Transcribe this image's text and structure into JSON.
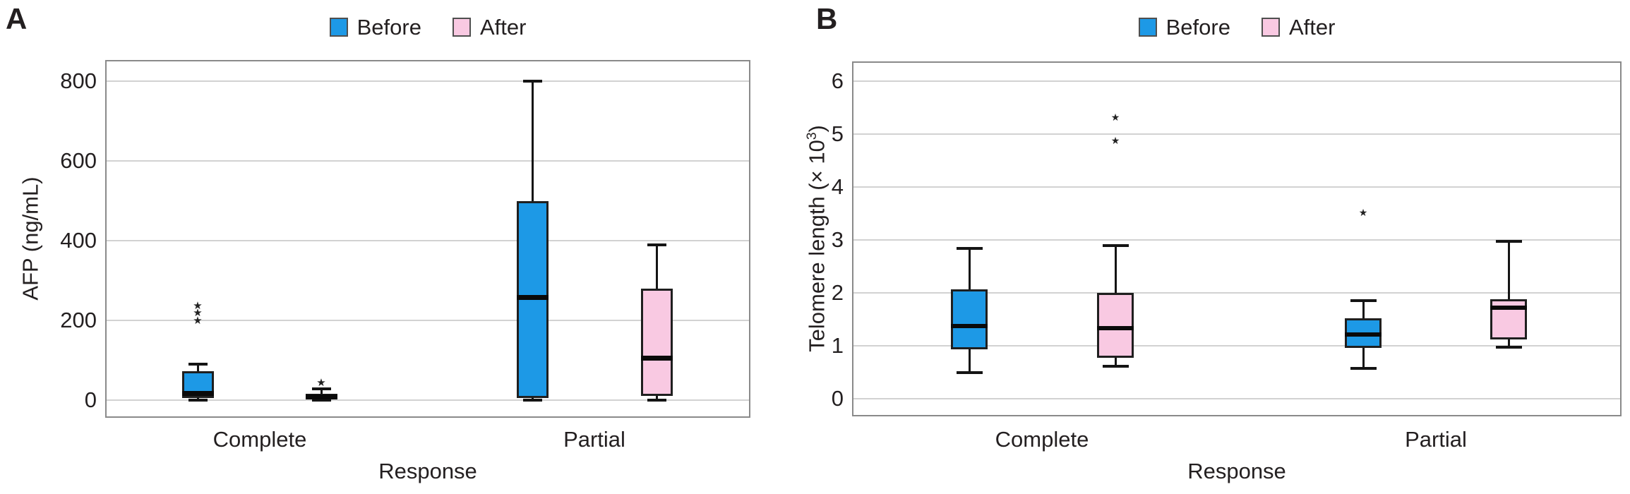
{
  "style": {
    "before_color": "#1d99e6",
    "after_color": "#f9c9e2",
    "box_border_color": "#1f1f1f",
    "median_color": "#0a0a0a",
    "grid_color": "#d2d2d2",
    "frame_color": "#8a8a8a",
    "text_color": "#231f20",
    "outlier_marker": "★"
  },
  "chart_data": [
    {
      "type": "boxplot",
      "title": "A",
      "xlabel": "Response",
      "ylabel": "AFP (ng/mL)",
      "ylabel_parts": {
        "prefix": "AFP (ng/mL)",
        "sup": "",
        "suffix": ""
      },
      "categories": [
        "Complete",
        "Partial"
      ],
      "yticks": [
        0,
        200,
        400,
        600,
        800
      ],
      "ylim": [
        -45,
        855
      ],
      "grid": true,
      "legend_position": "top-center",
      "series": [
        {
          "name": "Before",
          "color": "#1d99e6",
          "boxes": [
            {
              "category": "Complete",
              "whisker_low": 0,
              "q1": 5,
              "median": 16,
              "q3": 72,
              "whisker_high": 90,
              "outliers": [
                200,
                219,
                237
              ]
            },
            {
              "category": "Partial",
              "whisker_low": 0,
              "q1": 5,
              "median": 258,
              "q3": 500,
              "whisker_high": 800,
              "outliers": []
            }
          ]
        },
        {
          "name": "After",
          "color": "#f9c9e2",
          "boxes": [
            {
              "category": "Complete",
              "whisker_low": 0,
              "q1": 2,
              "median": 8,
              "q3": 16,
              "whisker_high": 28,
              "outliers": [
                43
              ]
            },
            {
              "category": "Partial",
              "whisker_low": 0,
              "q1": 10,
              "median": 105,
              "q3": 280,
              "whisker_high": 390,
              "outliers": []
            }
          ]
        }
      ]
    },
    {
      "type": "boxplot",
      "title": "B",
      "xlabel": "Response",
      "ylabel": "Telomere length (× 10³)",
      "ylabel_parts": {
        "prefix": "Telomere length (× 10",
        "sup": "3",
        "suffix": ")"
      },
      "categories": [
        "Complete",
        "Partial"
      ],
      "yticks": [
        0,
        1,
        2,
        3,
        4,
        5,
        6
      ],
      "ylim": [
        -0.33,
        6.37
      ],
      "grid": true,
      "legend_position": "top-center",
      "series": [
        {
          "name": "Before",
          "color": "#1d99e6",
          "boxes": [
            {
              "category": "Complete",
              "whisker_low": 0.5,
              "q1": 0.93,
              "median": 1.38,
              "q3": 2.07,
              "whisker_high": 2.84,
              "outliers": []
            },
            {
              "category": "Partial",
              "whisker_low": 0.57,
              "q1": 0.96,
              "median": 1.21,
              "q3": 1.52,
              "whisker_high": 1.85,
              "outliers": [
                3.52
              ]
            }
          ]
        },
        {
          "name": "After",
          "color": "#f9c9e2",
          "boxes": [
            {
              "category": "Complete",
              "whisker_low": 0.62,
              "q1": 0.77,
              "median": 1.33,
              "q3": 2.0,
              "whisker_high": 2.9,
              "outliers": [
                4.88,
                5.32
              ]
            },
            {
              "category": "Partial",
              "whisker_low": 0.98,
              "q1": 1.12,
              "median": 1.72,
              "q3": 1.88,
              "whisker_high": 2.97,
              "outliers": []
            }
          ]
        }
      ]
    }
  ]
}
